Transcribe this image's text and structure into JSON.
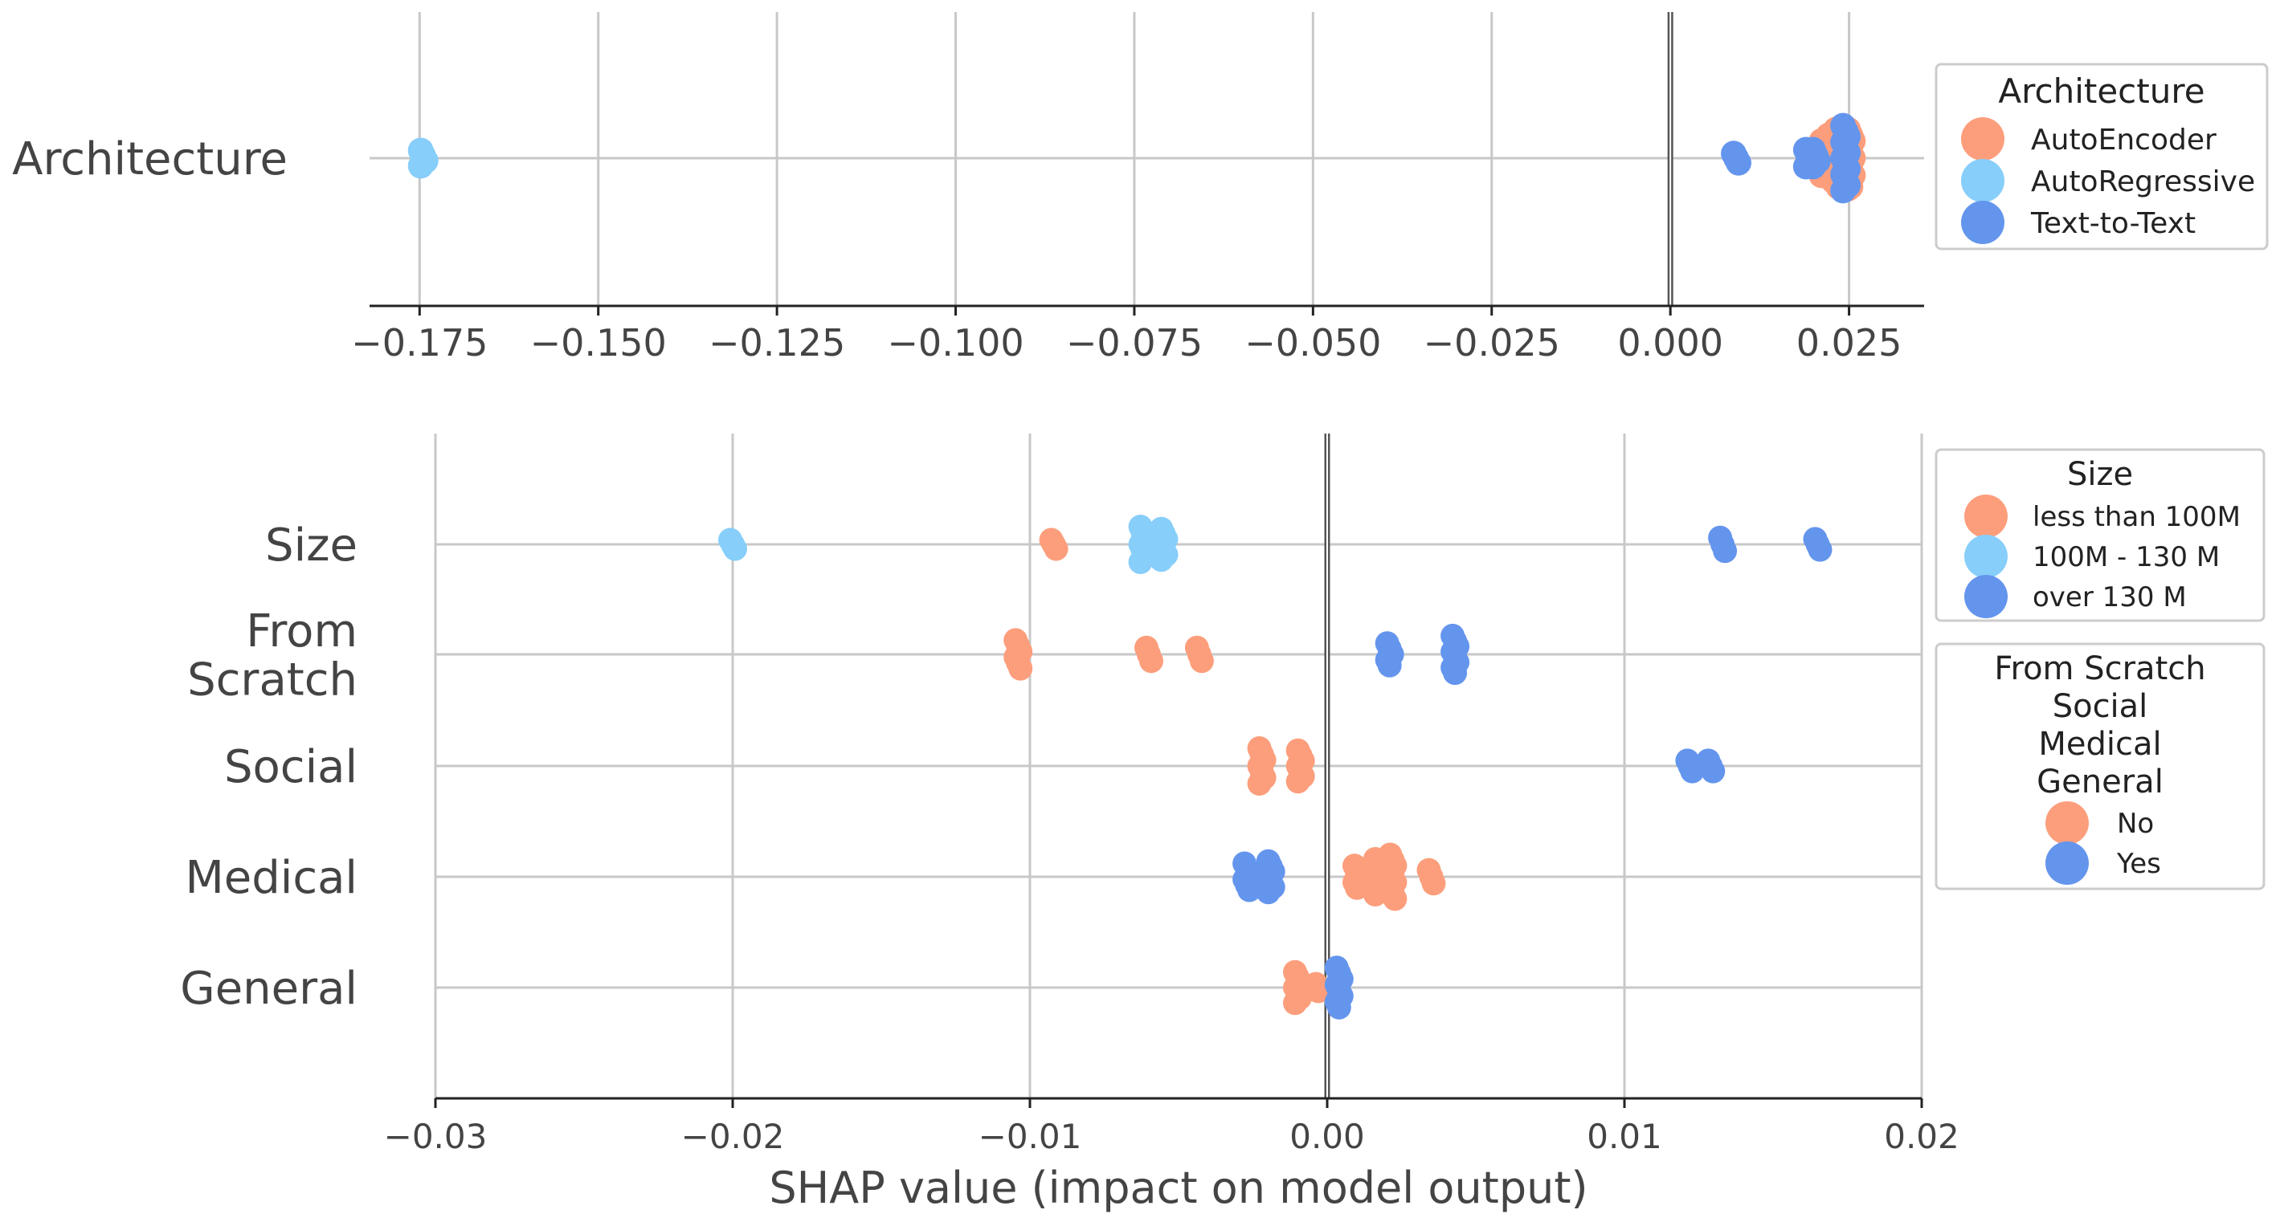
{
  "chart_data": [
    {
      "type": "scatter",
      "subtype": "beeswarm",
      "xlim": [
        -0.182,
        0.0355
      ],
      "xticks": [
        -0.175,
        -0.15,
        -0.125,
        -0.1,
        -0.075,
        -0.05,
        -0.025,
        0.0,
        0.025
      ],
      "xticklabels": [
        "−0.175",
        "−0.150",
        "−0.125",
        "−0.100",
        "−0.075",
        "−0.050",
        "−0.025",
        "0.000",
        "0.025"
      ],
      "grid": true,
      "features": [
        "Architecture"
      ],
      "legend": {
        "title": "Architecture",
        "placement": "right",
        "entries": [
          {
            "label": "AutoEncoder",
            "color": "#fc9e7c"
          },
          {
            "label": "AutoRegressive",
            "color": "#87cefa"
          },
          {
            "label": "Text-to-Text",
            "color": "#6495ed"
          }
        ]
      },
      "series": [
        {
          "name": "AutoEncoder",
          "color": "#fc9e7c",
          "points": [
            {
              "feature": "Architecture",
              "x": 0.0215,
              "spread": 0.45
            },
            {
              "feature": "Architecture",
              "x": 0.0225,
              "spread": 0.6
            },
            {
              "feature": "Architecture",
              "x": 0.0235,
              "spread": 0.75
            },
            {
              "feature": "Architecture",
              "x": 0.0245,
              "spread": 0.8
            },
            {
              "feature": "Architecture",
              "x": 0.0252,
              "spread": 0.75
            }
          ]
        },
        {
          "name": "AutoRegressive",
          "color": "#87cefa",
          "points": [
            {
              "feature": "Architecture",
              "x": -0.1745,
              "spread": 0.2
            }
          ]
        },
        {
          "name": "Text-to-Text",
          "color": "#6495ed",
          "points": [
            {
              "feature": "Architecture",
              "x": 0.0092,
              "spread": 0.12
            },
            {
              "feature": "Architecture",
              "x": 0.0193,
              "spread": 0.22
            },
            {
              "feature": "Architecture",
              "x": 0.0203,
              "spread": 0.22
            },
            {
              "feature": "Architecture",
              "x": 0.0245,
              "spread": 0.85
            }
          ]
        }
      ]
    },
    {
      "type": "scatter",
      "subtype": "beeswarm",
      "title": "",
      "xlabel": "SHAP value (impact on model output)",
      "xlim": [
        -0.03,
        0.02
      ],
      "xticks": [
        -0.03,
        -0.02,
        -0.01,
        0.0,
        0.01,
        0.02
      ],
      "xticklabels": [
        "−0.03",
        "−0.02",
        "−0.01",
        "0.00",
        "0.01",
        "0.02"
      ],
      "grid": true,
      "features": [
        "Size",
        "From\nScratch",
        "Social",
        "Medical",
        "General"
      ],
      "legends": [
        {
          "title": "Size",
          "placement": "right-top",
          "entries": [
            {
              "label": "less than 100M",
              "color": "#fc9e7c"
            },
            {
              "label": "100M - 130 M",
              "color": "#87cefa"
            },
            {
              "label": "over 130 M",
              "color": "#6495ed"
            }
          ]
        },
        {
          "title_lines": [
            "From Scratch",
            "Social",
            "Medical",
            "General"
          ],
          "placement": "right-middle",
          "entries": [
            {
              "label": "No",
              "color": "#fc9e7c"
            },
            {
              "label": "Yes",
              "color": "#6495ed"
            }
          ]
        }
      ],
      "series": [
        {
          "name": "less than 100M / No",
          "color": "#fc9e7c",
          "points": [
            {
              "feature": "Size",
              "x": -0.0092,
              "spread": 0.1
            },
            {
              "feature": "From\nScratch",
              "x": -0.0104,
              "spread": 0.32
            },
            {
              "feature": "From\nScratch",
              "x": -0.006,
              "spread": 0.15
            },
            {
              "feature": "From\nScratch",
              "x": -0.0043,
              "spread": 0.15
            },
            {
              "feature": "Social",
              "x": -0.0022,
              "spread": 0.4
            },
            {
              "feature": "Social",
              "x": -0.0009,
              "spread": 0.35
            },
            {
              "feature": "Medical",
              "x": 0.001,
              "spread": 0.25
            },
            {
              "feature": "Medical",
              "x": 0.0017,
              "spread": 0.4
            },
            {
              "feature": "Medical",
              "x": 0.0022,
              "spread": 0.5
            },
            {
              "feature": "Medical",
              "x": 0.0035,
              "spread": 0.15
            },
            {
              "feature": "General",
              "x": -0.001,
              "spread": 0.35
            },
            {
              "feature": "General",
              "x": -0.0003,
              "spread": 0.08
            }
          ]
        },
        {
          "name": "100M - 130 M",
          "color": "#87cefa",
          "points": [
            {
              "feature": "Size",
              "x": -0.02,
              "spread": 0.1
            },
            {
              "feature": "Size",
              "x": -0.0062,
              "spread": 0.4
            },
            {
              "feature": "Size",
              "x": -0.0055,
              "spread": 0.35
            }
          ]
        },
        {
          "name": "over 130 M / Yes",
          "color": "#6495ed",
          "points": [
            {
              "feature": "Size",
              "x": 0.0133,
              "spread": 0.15
            },
            {
              "feature": "Size",
              "x": 0.0165,
              "spread": 0.12
            },
            {
              "feature": "From\nScratch",
              "x": 0.0021,
              "spread": 0.25
            },
            {
              "feature": "From\nScratch",
              "x": 0.0043,
              "spread": 0.42
            },
            {
              "feature": "Social",
              "x": 0.0122,
              "spread": 0.12
            },
            {
              "feature": "Social",
              "x": 0.0129,
              "spread": 0.12
            },
            {
              "feature": "Medical",
              "x": -0.0027,
              "spread": 0.3
            },
            {
              "feature": "Medical",
              "x": -0.0019,
              "spread": 0.35
            },
            {
              "feature": "General",
              "x": 0.0004,
              "spread": 0.45
            }
          ]
        }
      ]
    }
  ]
}
